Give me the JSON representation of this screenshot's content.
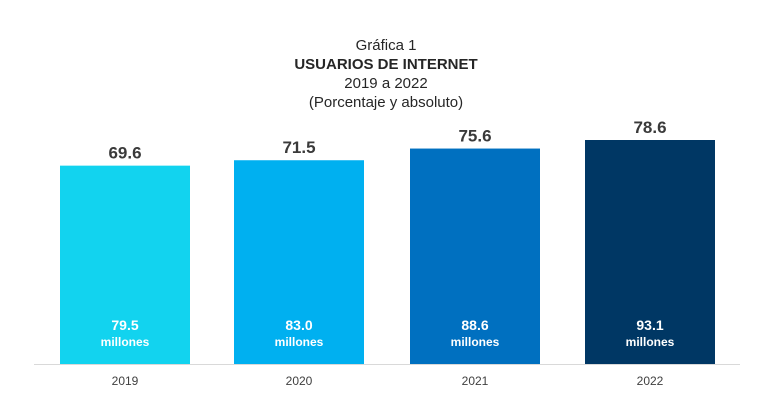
{
  "chart_data": {
    "type": "bar",
    "title_lines": [
      "Gráfica 1",
      "USUARIOS DE INTERNET",
      "2019 a 2022",
      "(Porcentaje y absoluto)"
    ],
    "categories": [
      "2019",
      "2020",
      "2021",
      "2022"
    ],
    "values": [
      69.6,
      71.5,
      75.6,
      78.6
    ],
    "value_labels": [
      "69.6",
      "71.5",
      "75.6",
      "78.6"
    ],
    "absolute_values": [
      79.5,
      83.0,
      88.6,
      93.1
    ],
    "absolute_labels": [
      "79.5",
      "83.0",
      "88.6",
      "93.1"
    ],
    "absolute_unit": "millones",
    "bar_colors": [
      "#12d3ef",
      "#00b0f0",
      "#0070c0",
      "#003764"
    ],
    "xlabel": "",
    "ylabel": "",
    "grid": false,
    "legend": "none"
  }
}
